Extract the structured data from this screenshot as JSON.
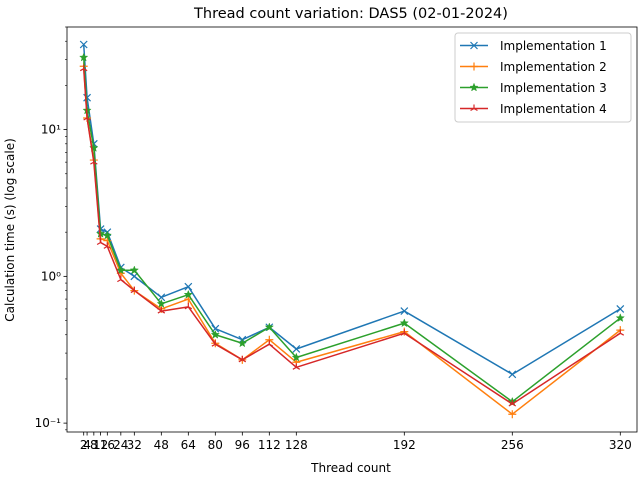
{
  "chart_data": {
    "type": "line",
    "title": "Thread count variation: DAS5 (02-01-2024)",
    "xlabel": "Thread count",
    "ylabel": "Calculation time (s) (log scale)",
    "yscale": "log",
    "x": [
      2,
      4,
      8,
      12,
      16,
      24,
      32,
      48,
      64,
      80,
      96,
      112,
      128,
      192,
      256,
      320
    ],
    "xticks": [
      2,
      4,
      8,
      12,
      16,
      24,
      32,
      48,
      64,
      80,
      96,
      112,
      128,
      192,
      256,
      320
    ],
    "xtick_labels": [
      "2",
      "4",
      "8",
      "12",
      "16",
      "24",
      "32",
      "48",
      "64",
      "80",
      "96",
      "112",
      "128",
      "192",
      "256",
      "320"
    ],
    "yticks": [
      0.1,
      1,
      10
    ],
    "ytick_labels": [
      "10⁻¹",
      "10⁰",
      "10¹"
    ],
    "xlim": [
      -7.9,
      329.9
    ],
    "ylim": [
      0.087,
      50
    ],
    "grid": false,
    "legend_position": "top-right",
    "series": [
      {
        "name": "Implementation 1",
        "color": "#1f77b4",
        "marker": "x",
        "values": [
          38,
          16.5,
          8,
          2.1,
          2.0,
          1.15,
          1.0,
          0.72,
          0.85,
          0.44,
          0.37,
          0.45,
          0.32,
          0.58,
          0.215,
          0.6
        ]
      },
      {
        "name": "Implementation 2",
        "color": "#ff7f0e",
        "marker": "plus",
        "values": [
          27,
          12,
          6.2,
          1.8,
          1.75,
          1.05,
          0.8,
          0.6,
          0.7,
          0.35,
          0.27,
          0.37,
          0.26,
          0.42,
          0.115,
          0.43
        ]
      },
      {
        "name": "Implementation 3",
        "color": "#2ca02c",
        "marker": "star",
        "values": [
          31,
          13.5,
          7.5,
          1.95,
          1.9,
          1.1,
          1.1,
          0.65,
          0.75,
          0.4,
          0.35,
          0.45,
          0.28,
          0.48,
          0.14,
          0.52
        ]
      },
      {
        "name": "Implementation 4",
        "color": "#d62728",
        "marker": "tri",
        "values": [
          26,
          12,
          6,
          1.7,
          1.6,
          0.95,
          0.8,
          0.58,
          0.62,
          0.345,
          0.27,
          0.345,
          0.24,
          0.41,
          0.135,
          0.41
        ]
      }
    ]
  }
}
